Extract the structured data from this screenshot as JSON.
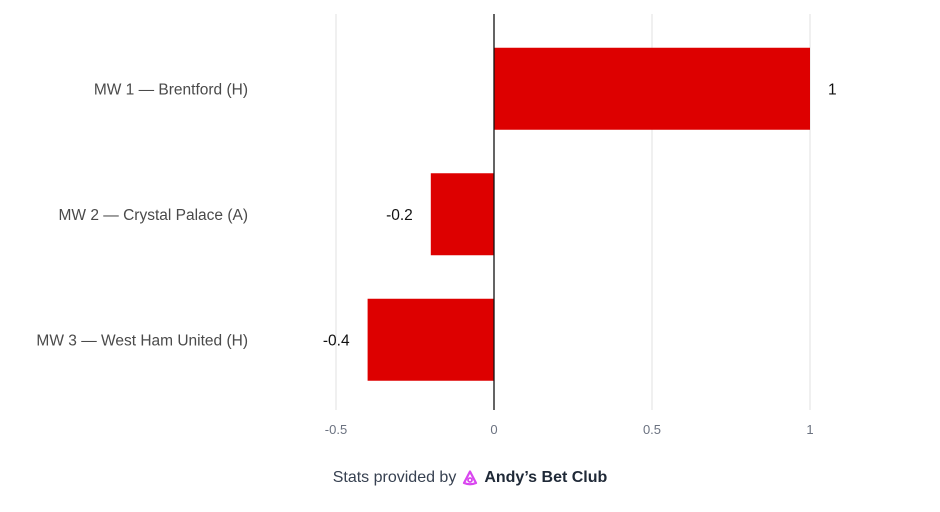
{
  "chart_data": {
    "type": "bar",
    "orientation": "horizontal",
    "categories": [
      "MW 1 — Brentford (H)",
      "MW 2 — Crystal Palace (A)",
      "MW 3 — West Ham United (H)"
    ],
    "values": [
      1,
      -0.2,
      -0.4
    ],
    "value_labels": [
      "1",
      "-0.2",
      "-0.4"
    ],
    "xlim": [
      -0.5,
      1
    ],
    "x_ticks": [
      -0.5,
      0,
      0.5,
      1
    ],
    "x_tick_labels": [
      "-0.5",
      "0",
      "0.5",
      "1"
    ],
    "grid": true,
    "bar_color": "#dd0000",
    "title": "",
    "xlabel": "",
    "ylabel": ""
  },
  "footer": {
    "prefix": "Stats provided by",
    "brand": "Andy’s Bet Club",
    "logo_icon": "andys-bet-club-logo-icon",
    "logo_color": "#d946ef"
  }
}
